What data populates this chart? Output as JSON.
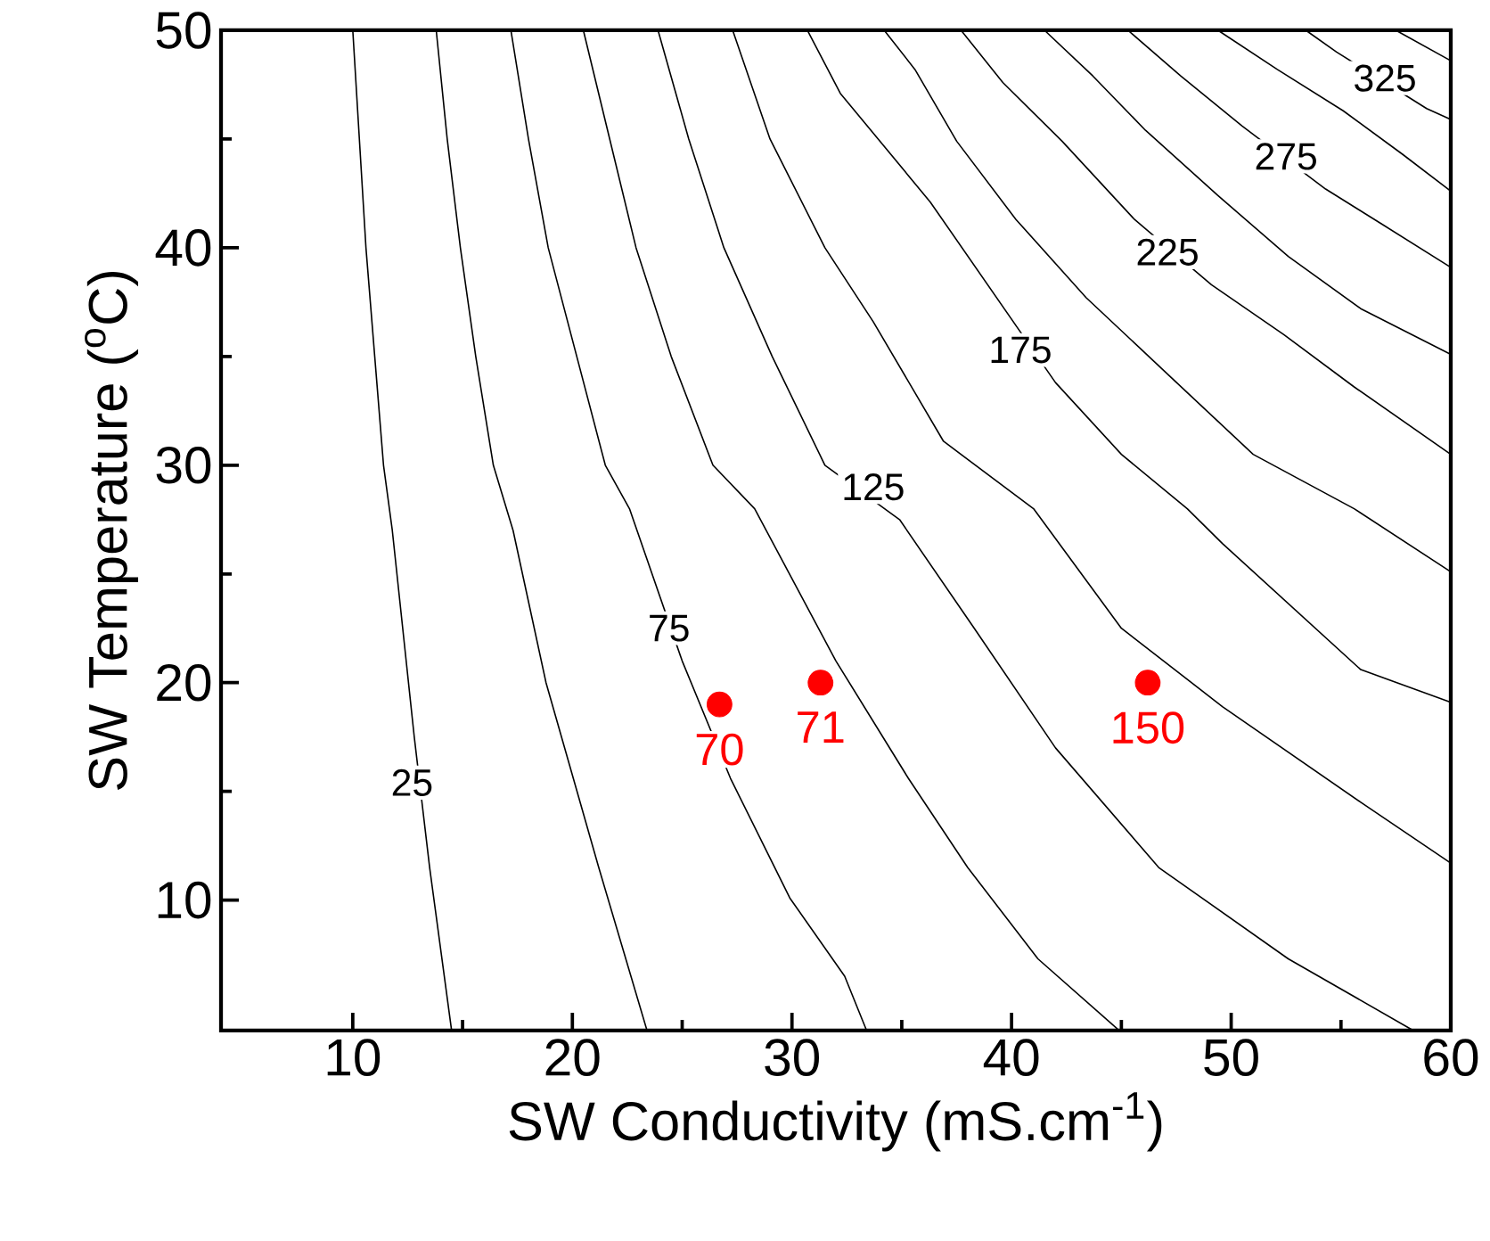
{
  "chart_data": {
    "type": "line",
    "xlabel": "SW Conductivity (mS.cm$^{-1}$)",
    "ylabel": "SW Temperature ($^{o}$C)",
    "xlim": [
      4,
      60
    ],
    "ylim": [
      4,
      50
    ],
    "xticks": [
      10,
      20,
      30,
      40,
      50,
      60
    ],
    "yticks": [
      10,
      20,
      30,
      40,
      50
    ],
    "series": [
      {
        "color": "#000000",
        "x": [
          10.0,
          10.3,
          10.6,
          11.0,
          11.4,
          11.8,
          12.8,
          13.5,
          14.5
        ],
        "values": [
          50,
          45,
          40,
          35,
          30,
          27,
          17.5,
          11.5,
          4
        ]
      },
      {
        "color": "#000000",
        "x": [
          13.8,
          14.3,
          14.9,
          15.6,
          16.4,
          17.3,
          18.8,
          21.2,
          23.4
        ],
        "values": [
          50,
          45,
          40,
          35,
          30,
          27,
          20,
          11.5,
          4
        ]
      },
      {
        "color": "#000000",
        "x": [
          17.2,
          18.0,
          18.9,
          20.2,
          21.5,
          22.6,
          25.0,
          27.2,
          29.9,
          32.4,
          33.4
        ],
        "values": [
          50,
          45,
          40,
          35,
          30,
          28,
          21,
          15.6,
          10.1,
          6.5,
          4
        ]
      },
      {
        "color": "#000000",
        "x": [
          20.5,
          21.7,
          22.9,
          24.5,
          26.4,
          28.3,
          32.0,
          35.3,
          38.0,
          41.2,
          44.9
        ],
        "values": [
          50,
          45,
          40,
          35,
          30,
          28,
          21,
          15.6,
          11.5,
          7.3,
          4
        ]
      },
      {
        "color": "#000000",
        "x": [
          23.9,
          25.3,
          26.9,
          29.1,
          31.5,
          34.9,
          38.3,
          42.0,
          46.7,
          52.6,
          58.3
        ],
        "values": [
          50,
          45,
          40,
          35,
          30,
          27.5,
          22.5,
          17,
          11.5,
          7.3,
          4
        ]
      },
      {
        "color": "#000000",
        "x": [
          27.3,
          29.0,
          31.5,
          33.7,
          36.9,
          41.0,
          45.0,
          49.6,
          55.9,
          60
        ],
        "values": [
          50,
          45,
          40,
          36.6,
          31.1,
          28,
          22.5,
          18.9,
          14.5,
          11.7
        ]
      },
      {
        "color": "#000000",
        "x": [
          30.7,
          32.2,
          36.3,
          42.0,
          45.0,
          48.0,
          49.6,
          55.9,
          60
        ],
        "values": [
          50,
          47.1,
          42.1,
          33.8,
          30.5,
          28,
          26.4,
          20.6,
          19.1
        ]
      },
      {
        "color": "#000000",
        "x": [
          34.2,
          35.6,
          37.5,
          40.2,
          43.4,
          47.2,
          51.0,
          55.6,
          60
        ],
        "values": [
          50,
          48.2,
          44.9,
          41.3,
          37.7,
          34.1,
          30.5,
          28,
          25.1
        ]
      },
      {
        "color": "#000000",
        "x": [
          37.7,
          39.6,
          42.3,
          45.6,
          49.1,
          52.4,
          55.6,
          60
        ],
        "values": [
          50,
          47.6,
          44.9,
          41.3,
          38.3,
          36.0,
          33.6,
          30.5
        ]
      },
      {
        "color": "#000000",
        "x": [
          41.5,
          43.7,
          46.1,
          49.4,
          52.6,
          55.9,
          60
        ],
        "values": [
          50,
          47.9,
          45.4,
          42.4,
          39.6,
          37.2,
          35.1
        ]
      },
      {
        "color": "#000000",
        "x": [
          45.3,
          47.7,
          50.5,
          54.3,
          57.0,
          60
        ],
        "values": [
          50,
          47.9,
          45.6,
          42.7,
          41.0,
          39.1
        ]
      },
      {
        "color": "#000000",
        "x": [
          49.4,
          52.1,
          55.1,
          57.8,
          60
        ],
        "values": [
          50,
          48.2,
          46.3,
          44.3,
          42.6
        ]
      },
      {
        "color": "#000000",
        "x": [
          53.4,
          54.8,
          58.9,
          60
        ],
        "values": [
          50,
          49.0,
          46.4,
          45.9
        ]
      },
      {
        "color": "#000000",
        "x": [
          57.5,
          60
        ],
        "values": [
          50,
          48.6
        ]
      },
      {
        "type": "scatter",
        "name": "70",
        "color": "#ff0000",
        "marker": "circle",
        "x": [
          26.7
        ],
        "values": [
          19
        ]
      },
      {
        "type": "scatter",
        "name": "71",
        "color": "#ff0000",
        "marker": "circle",
        "x": [
          31.3
        ],
        "values": [
          20
        ]
      },
      {
        "type": "scatter",
        "name": "150",
        "color": "#ff0000",
        "marker": "circle",
        "x": [
          46.2
        ],
        "values": [
          20
        ]
      }
    ],
    "annotations": [
      {
        "text": "25",
        "x": 12.7,
        "y": 15.4
      },
      {
        "text": "75",
        "x": 24.4,
        "y": 22.5
      },
      {
        "text": "125",
        "x": 33.7,
        "y": 29.0
      },
      {
        "text": "175",
        "x": 40.4,
        "y": 35.3
      },
      {
        "text": "225",
        "x": 47.1,
        "y": 39.8
      },
      {
        "text": "275",
        "x": 52.5,
        "y": 44.2
      },
      {
        "text": "325",
        "x": 57.0,
        "y": 47.8
      }
    ]
  }
}
